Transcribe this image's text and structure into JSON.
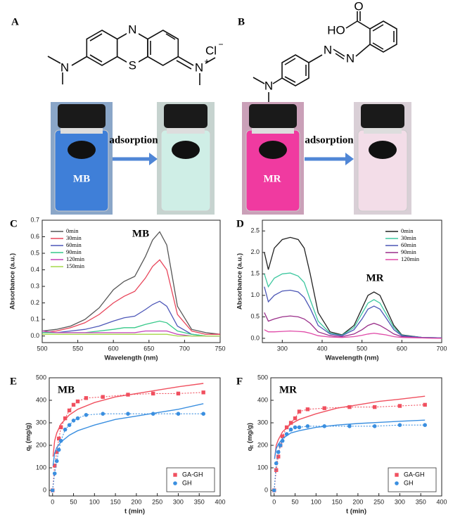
{
  "structures": [
    {
      "label": "A",
      "atoms": [
        "N",
        "S",
        "N",
        "N",
        "+",
        "Cl",
        "−"
      ]
    },
    {
      "label": "B",
      "atoms": [
        "O",
        "HO",
        "N",
        "N",
        "N"
      ]
    }
  ],
  "photos": [
    {
      "sample": "MB",
      "arrow": "adsorption"
    },
    {
      "sample": "MR",
      "arrow": "adsorption"
    }
  ],
  "chart_data": [
    {
      "type": "line",
      "panel_label": "C",
      "annotation": "MB",
      "xlabel": "Wavelength (nm)",
      "ylabel": "Absorbance (a.u.)",
      "xlim": [
        500,
        750
      ],
      "xticks": [
        500,
        550,
        600,
        650,
        700,
        750
      ],
      "ylim": [
        -0.04,
        0.7
      ],
      "yticks": [
        {
          "value": 0,
          "label": "0.0"
        },
        0.1,
        0.2,
        0.3,
        0.4,
        0.5,
        0.6,
        0.7
      ],
      "legend": "upper left",
      "x": [
        500,
        520,
        540,
        560,
        580,
        600,
        615,
        630,
        645,
        655,
        665,
        675,
        690,
        710,
        730,
        750
      ],
      "series": [
        {
          "name": "0min",
          "color": "#555555",
          "values": [
            0.03,
            0.04,
            0.06,
            0.1,
            0.17,
            0.28,
            0.33,
            0.36,
            0.48,
            0.58,
            0.63,
            0.55,
            0.18,
            0.04,
            0.02,
            0.01
          ]
        },
        {
          "name": "30min",
          "color": "#e8455a",
          "values": [
            0.02,
            0.03,
            0.05,
            0.08,
            0.13,
            0.2,
            0.24,
            0.27,
            0.35,
            0.42,
            0.46,
            0.4,
            0.13,
            0.03,
            0.01,
            0.01
          ]
        },
        {
          "name": "60min",
          "color": "#4d57b8",
          "values": [
            0.02,
            0.02,
            0.03,
            0.04,
            0.06,
            0.09,
            0.11,
            0.12,
            0.16,
            0.19,
            0.21,
            0.18,
            0.06,
            0.01,
            0.0,
            0.0
          ]
        },
        {
          "name": "90min",
          "color": "#37c98a",
          "values": [
            0.02,
            0.02,
            0.02,
            0.02,
            0.03,
            0.04,
            0.05,
            0.05,
            0.07,
            0.08,
            0.09,
            0.08,
            0.03,
            0.01,
            0.0,
            0.0
          ]
        },
        {
          "name": "120min",
          "color": "#c43fb8",
          "values": [
            0.03,
            0.02,
            0.02,
            0.02,
            0.02,
            0.02,
            0.02,
            0.02,
            0.03,
            0.03,
            0.03,
            0.03,
            0.01,
            0.0,
            0.0,
            0.0
          ]
        },
        {
          "name": "150min",
          "color": "#a6d84a",
          "values": [
            0.01,
            0.01,
            0.01,
            0.01,
            0.01,
            0.01,
            0.01,
            0.01,
            0.01,
            0.01,
            0.01,
            0.01,
            0.0,
            0.0,
            0.0,
            0.0
          ]
        }
      ]
    },
    {
      "type": "line",
      "panel_label": "D",
      "annotation": "MR",
      "xlabel": "Wavelength (nm)",
      "ylabel": "Absorbance (a.u.)",
      "xlim": [
        250,
        700
      ],
      "xticks": [
        300,
        400,
        500,
        600,
        700
      ],
      "ylim": [
        -0.1,
        2.75
      ],
      "yticks": [
        {
          "value": 0,
          "label": "0.0"
        },
        0.5,
        {
          "value": 1,
          "label": "1.0"
        },
        1.5,
        {
          "value": 2,
          "label": "2.0"
        },
        2.5
      ],
      "legend": "upper right",
      "x": [
        255,
        265,
        280,
        300,
        320,
        340,
        355,
        370,
        390,
        420,
        450,
        480,
        500,
        515,
        530,
        545,
        560,
        580,
        600,
        650,
        700
      ],
      "series": [
        {
          "name": "0min",
          "color": "#222222",
          "values": [
            2.0,
            1.6,
            2.1,
            2.3,
            2.35,
            2.3,
            2.1,
            1.5,
            0.6,
            0.15,
            0.08,
            0.3,
            0.7,
            1.0,
            1.08,
            1.0,
            0.7,
            0.3,
            0.08,
            0.02,
            0.01
          ]
        },
        {
          "name": "30min",
          "color": "#3fc8a0",
          "values": [
            1.5,
            1.2,
            1.4,
            1.5,
            1.52,
            1.45,
            1.3,
            0.9,
            0.4,
            0.12,
            0.07,
            0.25,
            0.58,
            0.82,
            0.9,
            0.82,
            0.58,
            0.25,
            0.07,
            0.02,
            0.01
          ]
        },
        {
          "name": "60min",
          "color": "#4b56b5",
          "values": [
            1.2,
            0.85,
            1.0,
            1.1,
            1.12,
            1.08,
            0.95,
            0.7,
            0.3,
            0.1,
            0.06,
            0.2,
            0.45,
            0.68,
            0.75,
            0.68,
            0.48,
            0.2,
            0.06,
            0.02,
            0.01
          ]
        },
        {
          "name": "90min",
          "color": "#9a2f8a",
          "values": [
            0.6,
            0.4,
            0.45,
            0.5,
            0.52,
            0.5,
            0.45,
            0.35,
            0.15,
            0.06,
            0.04,
            0.1,
            0.2,
            0.3,
            0.35,
            0.3,
            0.22,
            0.1,
            0.04,
            0.01,
            0.0
          ]
        },
        {
          "name": "120min",
          "color": "#e04aa8",
          "values": [
            0.2,
            0.15,
            0.15,
            0.16,
            0.17,
            0.16,
            0.15,
            0.12,
            0.06,
            0.03,
            0.02,
            0.04,
            0.07,
            0.1,
            0.12,
            0.1,
            0.08,
            0.04,
            0.02,
            0.01,
            0.0
          ]
        }
      ]
    },
    {
      "type": "scatter",
      "panel_label": "E",
      "annotation": "MB",
      "xlabel": "t (min)",
      "ylabel": "q",
      "ylabel_sub": "t",
      "ylabel_unit": "(mg/g)",
      "xlim": [
        -8,
        400
      ],
      "xticks": [
        0,
        50,
        100,
        150,
        200,
        250,
        300,
        350,
        400
      ],
      "ylim": [
        -25,
        500
      ],
      "yticks": [
        0,
        100,
        200,
        300,
        400,
        500
      ],
      "legend": "lower right",
      "x": [
        0,
        5,
        10,
        15,
        20,
        30,
        40,
        50,
        60,
        80,
        120,
        180,
        240,
        300,
        360
      ],
      "fit_x": [
        1,
        5,
        10,
        20,
        40,
        60,
        100,
        150,
        200,
        250,
        300,
        360
      ],
      "series": [
        {
          "name": "GA-GH",
          "color": "#f0505f",
          "marker": "square",
          "values": [
            0,
            110,
            170,
            230,
            280,
            320,
            355,
            380,
            395,
            410,
            415,
            425,
            430,
            430,
            435
          ],
          "fit": [
            150,
            220,
            255,
            295,
            335,
            360,
            390,
            415,
            430,
            445,
            460,
            475
          ]
        },
        {
          "name": "GH",
          "color": "#3a8fe0",
          "marker": "circle",
          "values": [
            0,
            75,
            130,
            180,
            220,
            270,
            290,
            310,
            320,
            335,
            340,
            340,
            340,
            340,
            340
          ],
          "fit": [
            110,
            165,
            190,
            215,
            245,
            265,
            290,
            315,
            330,
            345,
            360,
            385
          ]
        }
      ]
    },
    {
      "type": "scatter",
      "panel_label": "F",
      "annotation": "MR",
      "xlabel": "t (min)",
      "ylabel": "q",
      "ylabel_sub": "t",
      "ylabel_unit": "(mg/g)",
      "xlim": [
        -8,
        400
      ],
      "xticks": [
        0,
        50,
        100,
        150,
        200,
        250,
        300,
        350,
        400
      ],
      "ylim": [
        -25,
        500
      ],
      "yticks": [
        0,
        100,
        200,
        300,
        400,
        500
      ],
      "legend": "lower right",
      "x": [
        0,
        5,
        10,
        15,
        20,
        30,
        40,
        50,
        60,
        80,
        120,
        180,
        240,
        300,
        360
      ],
      "fit_x": [
        1,
        5,
        10,
        20,
        40,
        60,
        100,
        150,
        200,
        250,
        300,
        360
      ],
      "series": [
        {
          "name": "GA-GH",
          "color": "#f0505f",
          "marker": "square",
          "values": [
            0,
            90,
            150,
            200,
            240,
            280,
            300,
            320,
            350,
            360,
            365,
            370,
            370,
            375,
            380
          ],
          "fit": [
            140,
            200,
            225,
            260,
            295,
            315,
            340,
            365,
            380,
            395,
            405,
            418
          ]
        },
        {
          "name": "GH",
          "color": "#3a8fe0",
          "marker": "circle",
          "values": [
            0,
            120,
            170,
            200,
            220,
            250,
            270,
            280,
            280,
            285,
            285,
            285,
            285,
            290,
            290
          ],
          "fit": [
            140,
            185,
            205,
            230,
            255,
            265,
            280,
            290,
            297,
            302,
            307,
            312
          ]
        }
      ]
    }
  ]
}
